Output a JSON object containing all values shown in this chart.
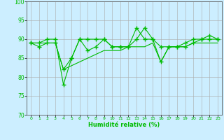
{
  "title": "",
  "xlabel": "Humidité relative (%)",
  "ylabel": "",
  "background_color": "#cceeff",
  "grid_color": "#aaaaaa",
  "line_color": "#00bb00",
  "ylim": [
    70,
    100
  ],
  "xlim": [
    -0.5,
    23.5
  ],
  "yticks": [
    70,
    75,
    80,
    85,
    90,
    95,
    100
  ],
  "xticks": [
    0,
    1,
    2,
    3,
    4,
    5,
    6,
    7,
    8,
    9,
    10,
    11,
    12,
    13,
    14,
    15,
    16,
    17,
    18,
    19,
    20,
    21,
    22,
    23
  ],
  "series1_x": [
    0,
    1,
    2,
    3,
    4,
    5,
    6,
    7,
    8,
    9,
    10,
    11,
    12,
    13,
    14,
    15,
    16,
    17,
    18,
    19,
    20,
    21,
    22,
    23
  ],
  "series1_y": [
    89,
    88,
    89,
    89,
    82,
    85,
    90,
    87,
    88,
    90,
    88,
    88,
    88,
    90,
    93,
    90,
    88,
    88,
    88,
    88,
    89,
    90,
    90,
    90
  ],
  "series2_x": [
    0,
    1,
    2,
    3,
    4,
    5,
    6,
    7,
    8,
    9,
    10,
    11,
    12,
    13,
    14,
    15,
    16,
    17,
    18,
    19,
    20,
    21,
    22,
    23
  ],
  "series2_y": [
    89,
    89,
    89,
    89,
    82,
    83,
    84,
    85,
    86,
    87,
    87,
    87,
    88,
    88,
    88,
    89,
    84,
    88,
    88,
    88,
    89,
    89,
    89,
    89
  ],
  "series3_x": [
    0,
    1,
    2,
    3,
    4,
    5,
    6,
    7,
    8,
    9,
    10,
    11,
    12,
    13,
    14,
    15,
    16,
    17,
    18,
    19,
    20,
    21,
    22,
    23
  ],
  "series3_y": [
    89,
    89,
    90,
    90,
    78,
    85,
    90,
    90,
    90,
    90,
    88,
    88,
    88,
    93,
    90,
    90,
    84,
    88,
    88,
    89,
    90,
    90,
    91,
    90
  ]
}
